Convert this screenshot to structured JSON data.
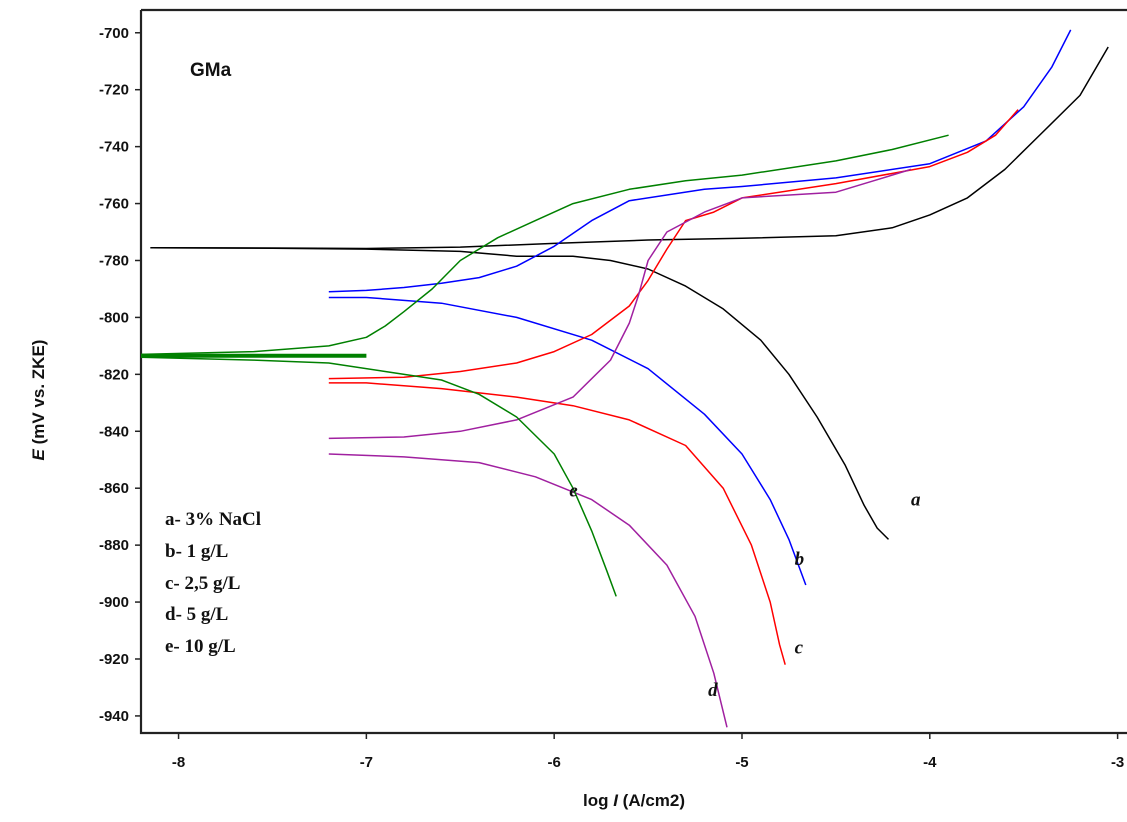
{
  "chart_data": {
    "type": "line",
    "title": "GMa",
    "xlabel_prefix": "log ",
    "xlabel_var": "I",
    "xlabel_suffix": " (A/cm2)",
    "ylabel_var": "E",
    "ylabel_suffix": " (mV vs. ZKE)",
    "xlim": [
      -8.2,
      -2.95
    ],
    "ylim": [
      -946,
      -692
    ],
    "x_ticks": [
      -8,
      -7,
      -6,
      -5,
      -4,
      -3
    ],
    "x_tick_labels": [
      "-8",
      "-7",
      "-6",
      "-5",
      "-4",
      "-3"
    ],
    "y_ticks": [
      -700,
      -720,
      -740,
      -760,
      -780,
      -800,
      -820,
      -840,
      -860,
      -880,
      -900,
      -920,
      -940
    ],
    "y_tick_labels": [
      "-700",
      "-720",
      "-740",
      "-760",
      "-780",
      "-800",
      "-820",
      "-840",
      "-860",
      "-880",
      "-900",
      "-920",
      "-940"
    ],
    "grid": false,
    "legend_position": "bottom-left",
    "legend": [
      "a- 3% NaCl",
      "b- 1 g/L",
      "c- 2,5 g/L",
      "d- 5 g/L",
      "e- 10 g/L"
    ],
    "series": [
      {
        "name": "a",
        "color": "#000000",
        "label_at": [
          -4.1,
          -866
        ],
        "anodic": [
          [
            -8.15,
            -775.5
          ],
          [
            -7.5,
            -775.6
          ],
          [
            -7,
            -775.8
          ],
          [
            -6.5,
            -775.3
          ],
          [
            -6,
            -774
          ],
          [
            -5.5,
            -772.8
          ],
          [
            -5,
            -772.2
          ],
          [
            -4.5,
            -771.3
          ],
          [
            -4.2,
            -768.5
          ],
          [
            -4,
            -764
          ],
          [
            -3.8,
            -758
          ],
          [
            -3.6,
            -748
          ],
          [
            -3.4,
            -735
          ],
          [
            -3.2,
            -722
          ],
          [
            -3.05,
            -705
          ]
        ],
        "cathodic": [
          [
            -8.15,
            -775.5
          ],
          [
            -7.5,
            -775.7
          ],
          [
            -7,
            -776
          ],
          [
            -6.5,
            -776.8
          ],
          [
            -6.2,
            -778.5
          ],
          [
            -5.9,
            -778.5
          ],
          [
            -5.7,
            -780
          ],
          [
            -5.5,
            -783
          ],
          [
            -5.3,
            -789
          ],
          [
            -5.1,
            -797
          ],
          [
            -4.9,
            -808
          ],
          [
            -4.75,
            -820
          ],
          [
            -4.6,
            -835
          ],
          [
            -4.45,
            -852
          ],
          [
            -4.35,
            -866
          ],
          [
            -4.28,
            -874
          ],
          [
            -4.22,
            -878
          ]
        ]
      },
      {
        "name": "b",
        "color": "#0000ff",
        "label_at": [
          -4.72,
          -887
        ],
        "anodic": [
          [
            -7.2,
            -791
          ],
          [
            -7,
            -790.5
          ],
          [
            -6.8,
            -789.5
          ],
          [
            -6.6,
            -788
          ],
          [
            -6.4,
            -786
          ],
          [
            -6.2,
            -782
          ],
          [
            -6,
            -775
          ],
          [
            -5.8,
            -766
          ],
          [
            -5.6,
            -759
          ],
          [
            -5.2,
            -755
          ],
          [
            -5,
            -754
          ],
          [
            -4.5,
            -751
          ],
          [
            -4,
            -746
          ],
          [
            -3.7,
            -738
          ],
          [
            -3.5,
            -726
          ],
          [
            -3.35,
            -712
          ],
          [
            -3.25,
            -699
          ]
        ],
        "cathodic": [
          [
            -7.2,
            -793
          ],
          [
            -7,
            -793
          ],
          [
            -6.6,
            -795
          ],
          [
            -6.2,
            -800
          ],
          [
            -5.8,
            -808
          ],
          [
            -5.5,
            -818
          ],
          [
            -5.2,
            -834
          ],
          [
            -5,
            -848
          ],
          [
            -4.85,
            -864
          ],
          [
            -4.75,
            -878
          ],
          [
            -4.66,
            -894
          ]
        ]
      },
      {
        "name": "c",
        "color": "#ff0000",
        "label_at": [
          -4.72,
          -918
        ],
        "anodic": [
          [
            -7.2,
            -821.5
          ],
          [
            -6.8,
            -821
          ],
          [
            -6.5,
            -819
          ],
          [
            -6.2,
            -816
          ],
          [
            -6,
            -812
          ],
          [
            -5.8,
            -806
          ],
          [
            -5.6,
            -796
          ],
          [
            -5.5,
            -787
          ],
          [
            -5.4,
            -776
          ],
          [
            -5.3,
            -766
          ],
          [
            -5.15,
            -763
          ],
          [
            -5,
            -758
          ],
          [
            -4.5,
            -753
          ],
          [
            -4,
            -747
          ],
          [
            -3.8,
            -742
          ],
          [
            -3.65,
            -736
          ],
          [
            -3.53,
            -727
          ]
        ],
        "cathodic": [
          [
            -7.2,
            -823
          ],
          [
            -7,
            -823
          ],
          [
            -6.6,
            -825
          ],
          [
            -6.2,
            -828
          ],
          [
            -5.9,
            -831
          ],
          [
            -5.6,
            -836
          ],
          [
            -5.3,
            -845
          ],
          [
            -5.1,
            -860
          ],
          [
            -4.95,
            -880
          ],
          [
            -4.85,
            -900
          ],
          [
            -4.8,
            -915
          ],
          [
            -4.77,
            -922
          ]
        ]
      },
      {
        "name": "d",
        "color": "#a020a0",
        "label_at": [
          -5.18,
          -933
        ],
        "anodic": [
          [
            -7.2,
            -842.5
          ],
          [
            -6.8,
            -842
          ],
          [
            -6.5,
            -840
          ],
          [
            -6.2,
            -836
          ],
          [
            -5.9,
            -828
          ],
          [
            -5.7,
            -815
          ],
          [
            -5.6,
            -802
          ],
          [
            -5.55,
            -792
          ],
          [
            -5.5,
            -780
          ],
          [
            -5.4,
            -770
          ],
          [
            -5.2,
            -763
          ],
          [
            -5,
            -758
          ],
          [
            -4.5,
            -756
          ],
          [
            -4.3,
            -752
          ],
          [
            -4.1,
            -748
          ]
        ],
        "cathodic": [
          [
            -7.2,
            -848
          ],
          [
            -6.8,
            -849
          ],
          [
            -6.4,
            -851
          ],
          [
            -6.1,
            -856
          ],
          [
            -5.8,
            -864
          ],
          [
            -5.6,
            -873
          ],
          [
            -5.4,
            -887
          ],
          [
            -5.25,
            -905
          ],
          [
            -5.15,
            -925
          ],
          [
            -5.08,
            -944
          ]
        ]
      },
      {
        "name": "e",
        "color": "#008000",
        "label_at": [
          -5.92,
          -863
        ],
        "anodic": [
          [
            -8.2,
            -813
          ],
          [
            -7.6,
            -812
          ],
          [
            -7.2,
            -810
          ],
          [
            -7,
            -807
          ],
          [
            -6.9,
            -803
          ],
          [
            -6.8,
            -798
          ],
          [
            -6.65,
            -790
          ],
          [
            -6.5,
            -780
          ],
          [
            -6.3,
            -772
          ],
          [
            -6.1,
            -766
          ],
          [
            -5.9,
            -760
          ],
          [
            -5.6,
            -755
          ],
          [
            -5.3,
            -752
          ],
          [
            -5,
            -750
          ],
          [
            -4.5,
            -745
          ],
          [
            -4.2,
            -741
          ],
          [
            -3.9,
            -736
          ]
        ],
        "cathodic": [
          [
            -8.2,
            -814
          ],
          [
            -7.6,
            -815
          ],
          [
            -7.2,
            -816
          ],
          [
            -6.9,
            -819
          ],
          [
            -6.6,
            -822
          ],
          [
            -6.4,
            -827
          ],
          [
            -6.2,
            -835
          ],
          [
            -6,
            -848
          ],
          [
            -5.9,
            -860
          ],
          [
            -5.8,
            -875
          ],
          [
            -5.72,
            -889
          ],
          [
            -5.67,
            -898
          ]
        ],
        "spike": [
          [
            -8.2,
            -813.5
          ],
          [
            -7,
            -813.5
          ]
        ]
      }
    ]
  }
}
